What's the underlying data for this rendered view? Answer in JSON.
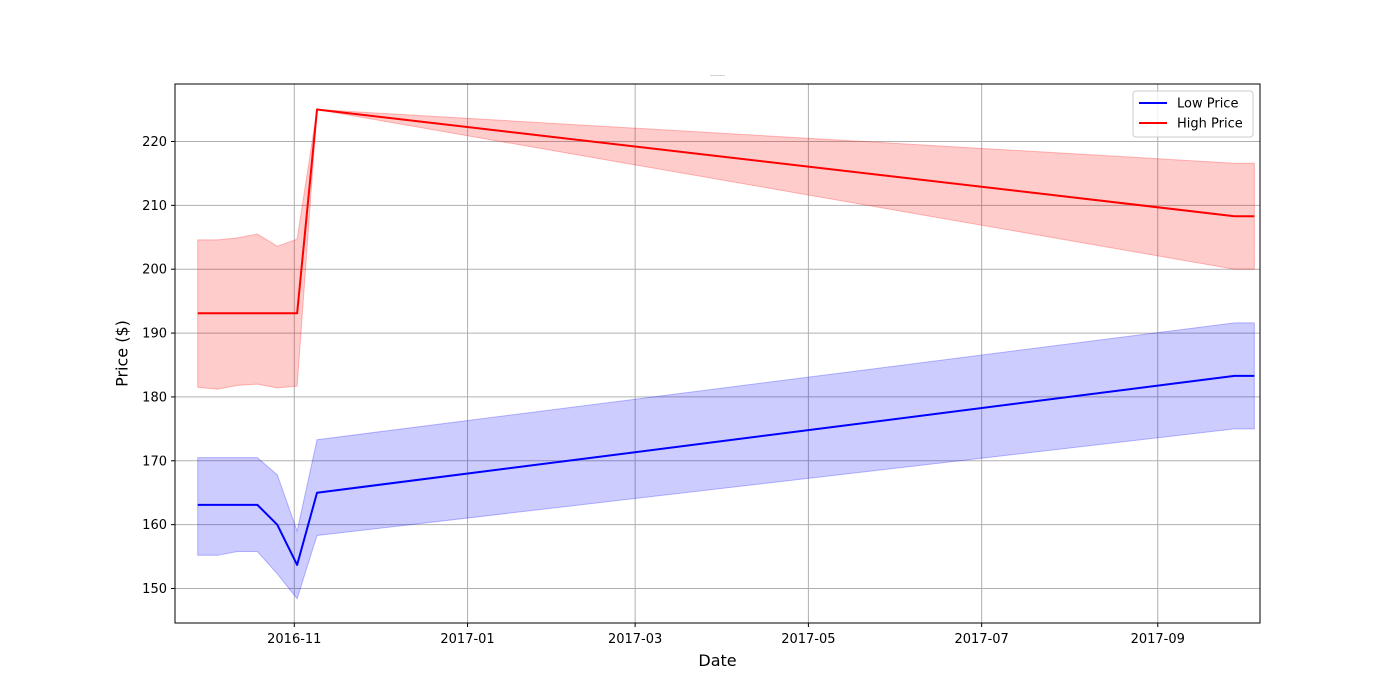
{
  "chart_data": {
    "type": "line",
    "title": "—————",
    "xlabel": "Date",
    "ylabel": "Price ($)",
    "xlim": [
      "2016-09-20",
      "2017-10-07"
    ],
    "ylim": [
      144.6,
      229
    ],
    "grid": true,
    "legend_position": "top-right",
    "x_ticks": [
      "2016-11",
      "2017-01",
      "2017-03",
      "2017-05",
      "2017-07",
      "2017-09"
    ],
    "y_ticks": [
      150,
      160,
      170,
      180,
      190,
      200,
      210,
      220
    ],
    "series": [
      {
        "name": "Low Price",
        "color": "#0000ff",
        "band_color": "#0000ff",
        "points": [
          {
            "date": "2016-09-28",
            "value": 163.1,
            "lower": 155.2,
            "upper": 170.5
          },
          {
            "date": "2016-10-05",
            "value": 163.1,
            "lower": 155.2,
            "upper": 170.5
          },
          {
            "date": "2016-10-12",
            "value": 163.1,
            "lower": 155.8,
            "upper": 170.5
          },
          {
            "date": "2016-10-19",
            "value": 163.1,
            "lower": 155.8,
            "upper": 170.5
          },
          {
            "date": "2016-10-26",
            "value": 160.0,
            "lower": 152.3,
            "upper": 167.8
          },
          {
            "date": "2016-11-02",
            "value": 153.7,
            "lower": 148.4,
            "upper": 159.0
          },
          {
            "date": "2016-11-09",
            "value": 165.0,
            "lower": 158.3,
            "upper": 173.3
          },
          {
            "date": "2017-09-28",
            "value": 183.3,
            "lower": 175.0,
            "upper": 191.6
          },
          {
            "date": "2017-10-05",
            "value": 183.3,
            "lower": 175.0,
            "upper": 191.6
          }
        ]
      },
      {
        "name": "High Price",
        "color": "#ff0000",
        "band_color": "#ff0000",
        "points": [
          {
            "date": "2016-09-28",
            "value": 193.1,
            "lower": 181.5,
            "upper": 204.6
          },
          {
            "date": "2016-10-05",
            "value": 193.1,
            "lower": 181.2,
            "upper": 204.6
          },
          {
            "date": "2016-10-12",
            "value": 193.1,
            "lower": 181.8,
            "upper": 204.9
          },
          {
            "date": "2016-10-19",
            "value": 193.1,
            "lower": 182.0,
            "upper": 205.5
          },
          {
            "date": "2016-10-26",
            "value": 193.1,
            "lower": 181.4,
            "upper": 203.6
          },
          {
            "date": "2016-11-02",
            "value": 193.1,
            "lower": 181.7,
            "upper": 204.7
          },
          {
            "date": "2016-11-09",
            "value": 225.0,
            "lower": 225.0,
            "upper": 225.0
          },
          {
            "date": "2017-09-28",
            "value": 208.3,
            "lower": 200.0,
            "upper": 216.6
          },
          {
            "date": "2017-10-05",
            "value": 208.3,
            "lower": 200.0,
            "upper": 216.6
          }
        ]
      }
    ]
  }
}
